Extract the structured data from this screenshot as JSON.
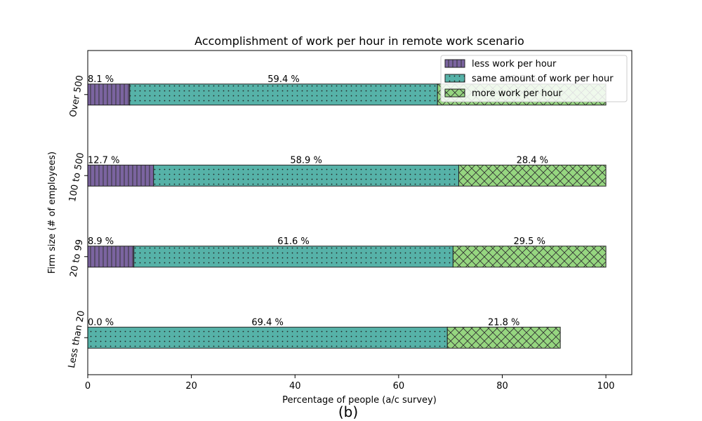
{
  "chart_data": {
    "type": "bar",
    "orientation": "horizontal",
    "stacked": true,
    "title": "Accomplishment of work per hour in remote work scenario",
    "xlabel": "Percentage of people (a/c survey)",
    "ylabel": "Firm size (# of employees)",
    "caption": "(b)",
    "xlim": [
      0,
      105
    ],
    "xticks": [
      0,
      20,
      40,
      60,
      80,
      100
    ],
    "xtick_labels": [
      "0",
      "20",
      "40",
      "60",
      "80",
      "100"
    ],
    "categories": [
      "Less than 20",
      "20 to 99",
      "100 to 500",
      "Over 500"
    ],
    "series": [
      {
        "name": "less work per hour",
        "color": "#7b64a0",
        "hatch": "vertical-lines",
        "values": [
          0.0,
          8.9,
          12.7,
          8.1
        ],
        "labels": [
          "0.0 %",
          "8.9 %",
          "12.7 %",
          "8.1 %"
        ]
      },
      {
        "name": "same amount of work per hour",
        "color": "#56b2a8",
        "hatch": "dots",
        "values": [
          69.4,
          61.6,
          58.9,
          59.4
        ],
        "labels": [
          "69.4 %",
          "61.6 %",
          "58.9 %",
          "59.4 %"
        ]
      },
      {
        "name": "more work per hour",
        "color": "#96d680",
        "hatch": "crosshatch",
        "values": [
          21.8,
          29.5,
          28.4,
          32.5
        ],
        "labels": [
          "21.8 %",
          "29.5 %",
          "28.4 %",
          "32.5 %"
        ]
      }
    ],
    "legend_position": "top-right",
    "grid": false
  }
}
